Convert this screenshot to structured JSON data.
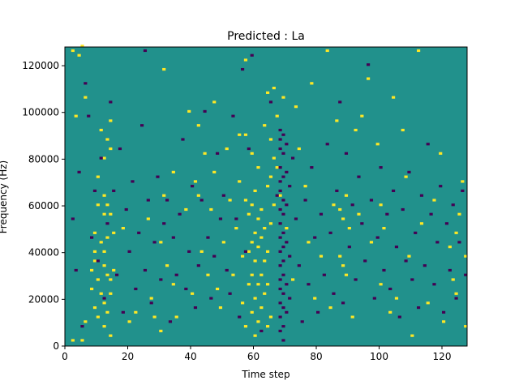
{
  "chart_data": {
    "type": "heatmap",
    "title": "Predicted : La",
    "xlabel": "Time step",
    "ylabel": "Frequency (Hz)",
    "xlim": [
      0,
      128
    ],
    "ylim": [
      0,
      128000
    ],
    "x_ticks": [
      0,
      20,
      40,
      60,
      80,
      100,
      120
    ],
    "x_tick_labels": [
      "0",
      "20",
      "40",
      "60",
      "80",
      "100",
      "120"
    ],
    "y_ticks": [
      0,
      20000,
      40000,
      60000,
      80000,
      100000,
      120000
    ],
    "y_tick_labels": [
      "0",
      "20000",
      "40000",
      "60000",
      "80000",
      "100000",
      "120000"
    ],
    "grid": false,
    "n_time_steps": 128,
    "n_frequency_bins": 128,
    "colormap": "viridis",
    "colors": {
      "background": "#21918c",
      "high": "#fde725",
      "low": "#440154"
    },
    "background_level": 0,
    "cells": {
      "high": [
        [
          2,
          126000
        ],
        [
          2,
          2000
        ],
        [
          3,
          98000
        ],
        [
          4,
          124000
        ],
        [
          5,
          128000
        ],
        [
          5,
          2000
        ],
        [
          6,
          106000
        ],
        [
          6,
          10000
        ],
        [
          8,
          32000
        ],
        [
          8,
          24000
        ],
        [
          9,
          48000
        ],
        [
          9,
          40000
        ],
        [
          9,
          36000
        ],
        [
          9,
          16000
        ],
        [
          10,
          72000
        ],
        [
          10,
          60000
        ],
        [
          10,
          28000
        ],
        [
          10,
          12000
        ],
        [
          11,
          92000
        ],
        [
          11,
          44000
        ],
        [
          11,
          22000
        ],
        [
          12,
          80000
        ],
        [
          12,
          64000
        ],
        [
          12,
          56000
        ],
        [
          12,
          40000
        ],
        [
          12,
          34000
        ],
        [
          12,
          18000
        ],
        [
          12,
          8000
        ],
        [
          13,
          88000
        ],
        [
          13,
          60000
        ],
        [
          13,
          46000
        ],
        [
          13,
          30000
        ],
        [
          13,
          14000
        ],
        [
          14,
          96000
        ],
        [
          14,
          84000
        ],
        [
          14,
          56000
        ],
        [
          14,
          28000
        ],
        [
          14,
          22000
        ],
        [
          14,
          4000
        ],
        [
          15,
          48000
        ],
        [
          15,
          32000
        ],
        [
          18,
          50000
        ],
        [
          20,
          10000
        ],
        [
          22,
          14000
        ],
        [
          26,
          54000
        ],
        [
          27,
          20000
        ],
        [
          28,
          12000
        ],
        [
          30,
          44000
        ],
        [
          30,
          6000
        ],
        [
          31,
          118000
        ],
        [
          31,
          64000
        ],
        [
          32,
          34000
        ],
        [
          34,
          74000
        ],
        [
          34,
          26000
        ],
        [
          35,
          12000
        ],
        [
          38,
          58000
        ],
        [
          39,
          100000
        ],
        [
          40,
          22000
        ],
        [
          41,
          70000
        ],
        [
          42,
          94000
        ],
        [
          42,
          64000
        ],
        [
          43,
          40000
        ],
        [
          44,
          82000
        ],
        [
          45,
          30000
        ],
        [
          46,
          58000
        ],
        [
          47,
          104000
        ],
        [
          47,
          74000
        ],
        [
          48,
          24000
        ],
        [
          49,
          16000
        ],
        [
          50,
          44000
        ],
        [
          51,
          84000
        ],
        [
          52,
          62000
        ],
        [
          53,
          30000
        ],
        [
          54,
          50000
        ],
        [
          55,
          90000
        ],
        [
          55,
          70000
        ],
        [
          56,
          38000
        ],
        [
          56,
          18000
        ],
        [
          57,
          122000
        ],
        [
          57,
          90000
        ],
        [
          57,
          62000
        ],
        [
          57,
          8000
        ],
        [
          58,
          56000
        ],
        [
          58,
          40000
        ],
        [
          58,
          26000
        ],
        [
          59,
          82000
        ],
        [
          59,
          60000
        ],
        [
          59,
          44000
        ],
        [
          59,
          30000
        ],
        [
          59,
          14000
        ],
        [
          60,
          66000
        ],
        [
          60,
          48000
        ],
        [
          60,
          36000
        ],
        [
          60,
          20000
        ],
        [
          60,
          4000
        ],
        [
          61,
          76000
        ],
        [
          61,
          54000
        ],
        [
          61,
          42000
        ],
        [
          61,
          26000
        ],
        [
          61,
          10000
        ],
        [
          62,
          58000
        ],
        [
          62,
          46000
        ],
        [
          62,
          30000
        ],
        [
          62,
          16000
        ],
        [
          63,
          94000
        ],
        [
          63,
          50000
        ],
        [
          63,
          36000
        ],
        [
          63,
          22000
        ],
        [
          64,
          108000
        ],
        [
          64,
          68000
        ],
        [
          64,
          40000
        ],
        [
          64,
          26000
        ],
        [
          64,
          8000
        ],
        [
          65,
          88000
        ],
        [
          65,
          72000
        ],
        [
          65,
          52000
        ],
        [
          65,
          12000
        ],
        [
          66,
          110000
        ],
        [
          66,
          80000
        ],
        [
          66,
          60000
        ],
        [
          67,
          98000
        ],
        [
          67,
          76000
        ],
        [
          68,
          64000
        ],
        [
          69,
          106000
        ],
        [
          70,
          50000
        ],
        [
          72,
          28000
        ],
        [
          73,
          102000
        ],
        [
          74,
          84000
        ],
        [
          76,
          68000
        ],
        [
          77,
          44000
        ],
        [
          78,
          112000
        ],
        [
          79,
          20000
        ],
        [
          81,
          38000
        ],
        [
          83,
          126000
        ],
        [
          84,
          16000
        ],
        [
          85,
          60000
        ],
        [
          86,
          96000
        ],
        [
          87,
          58000
        ],
        [
          87,
          38000
        ],
        [
          88,
          54000
        ],
        [
          88,
          34000
        ],
        [
          89,
          64000
        ],
        [
          89,
          30000
        ],
        [
          90,
          50000
        ],
        [
          91,
          12000
        ],
        [
          92,
          92000
        ],
        [
          93,
          56000
        ],
        [
          94,
          98000
        ],
        [
          96,
          114000
        ],
        [
          97,
          44000
        ],
        [
          99,
          86000
        ],
        [
          100,
          60000
        ],
        [
          100,
          26000
        ],
        [
          101,
          50000
        ],
        [
          103,
          14000
        ],
        [
          104,
          106000
        ],
        [
          105,
          20000
        ],
        [
          107,
          92000
        ],
        [
          108,
          72000
        ],
        [
          109,
          38000
        ],
        [
          110,
          4000
        ],
        [
          112,
          126000
        ],
        [
          113,
          52000
        ],
        [
          115,
          18000
        ],
        [
          117,
          62000
        ],
        [
          119,
          82000
        ],
        [
          120,
          10000
        ],
        [
          122,
          42000
        ],
        [
          123,
          28000
        ],
        [
          124,
          48000
        ],
        [
          124,
          22000
        ],
        [
          125,
          56000
        ],
        [
          126,
          70000
        ],
        [
          127,
          38000
        ],
        [
          127,
          8000
        ]
      ],
      "low": [
        [
          2,
          54000
        ],
        [
          3,
          32000
        ],
        [
          4,
          74000
        ],
        [
          5,
          8000
        ],
        [
          6,
          112000
        ],
        [
          7,
          98000
        ],
        [
          8,
          46000
        ],
        [
          9,
          66000
        ],
        [
          10,
          36000
        ],
        [
          11,
          80000
        ],
        [
          12,
          20000
        ],
        [
          13,
          52000
        ],
        [
          14,
          104000
        ],
        [
          15,
          66000
        ],
        [
          16,
          30000
        ],
        [
          17,
          84000
        ],
        [
          18,
          14000
        ],
        [
          19,
          58000
        ],
        [
          20,
          40000
        ],
        [
          21,
          70000
        ],
        [
          22,
          24000
        ],
        [
          23,
          48000
        ],
        [
          24,
          94000
        ],
        [
          25,
          126000
        ],
        [
          25,
          32000
        ],
        [
          26,
          62000
        ],
        [
          27,
          18000
        ],
        [
          28,
          44000
        ],
        [
          29,
          72000
        ],
        [
          30,
          28000
        ],
        [
          31,
          52000
        ],
        [
          32,
          62000
        ],
        [
          33,
          10000
        ],
        [
          34,
          46000
        ],
        [
          35,
          30000
        ],
        [
          36,
          56000
        ],
        [
          37,
          88000
        ],
        [
          38,
          24000
        ],
        [
          39,
          40000
        ],
        [
          40,
          68000
        ],
        [
          41,
          16000
        ],
        [
          42,
          34000
        ],
        [
          43,
          62000
        ],
        [
          44,
          100000
        ],
        [
          45,
          46000
        ],
        [
          46,
          20000
        ],
        [
          47,
          38000
        ],
        [
          48,
          82000
        ],
        [
          49,
          54000
        ],
        [
          50,
          64000
        ],
        [
          51,
          32000
        ],
        [
          52,
          22000
        ],
        [
          53,
          98000
        ],
        [
          54,
          54000
        ],
        [
          55,
          12000
        ],
        [
          56,
          118000
        ],
        [
          57,
          40000
        ],
        [
          58,
          84000
        ],
        [
          59,
          124000
        ],
        [
          62,
          6000
        ],
        [
          65,
          104000
        ],
        [
          67,
          64000
        ],
        [
          68,
          92000
        ],
        [
          68,
          88000
        ],
        [
          68,
          84000
        ],
        [
          68,
          76000
        ],
        [
          68,
          70000
        ],
        [
          68,
          66000
        ],
        [
          68,
          58000
        ],
        [
          68,
          52000
        ],
        [
          68,
          46000
        ],
        [
          68,
          40000
        ],
        [
          68,
          34000
        ],
        [
          68,
          28000
        ],
        [
          68,
          24000
        ],
        [
          68,
          18000
        ],
        [
          68,
          12000
        ],
        [
          68,
          6000
        ],
        [
          69,
          90000
        ],
        [
          69,
          82000
        ],
        [
          69,
          72000
        ],
        [
          69,
          62000
        ],
        [
          69,
          56000
        ],
        [
          69,
          48000
        ],
        [
          69,
          42000
        ],
        [
          69,
          36000
        ],
        [
          69,
          30000
        ],
        [
          69,
          22000
        ],
        [
          69,
          16000
        ],
        [
          69,
          8000
        ],
        [
          69,
          2000
        ],
        [
          70,
          86000
        ],
        [
          70,
          74000
        ],
        [
          70,
          60000
        ],
        [
          70,
          44000
        ],
        [
          70,
          26000
        ],
        [
          70,
          14000
        ],
        [
          71,
          68000
        ],
        [
          71,
          38000
        ],
        [
          71,
          20000
        ],
        [
          72,
          80000
        ],
        [
          73,
          54000
        ],
        [
          74,
          34000
        ],
        [
          75,
          10000
        ],
        [
          76,
          62000
        ],
        [
          77,
          26000
        ],
        [
          78,
          76000
        ],
        [
          79,
          46000
        ],
        [
          80,
          14000
        ],
        [
          81,
          56000
        ],
        [
          82,
          30000
        ],
        [
          83,
          86000
        ],
        [
          84,
          48000
        ],
        [
          85,
          22000
        ],
        [
          86,
          66000
        ],
        [
          87,
          104000
        ],
        [
          88,
          18000
        ],
        [
          89,
          82000
        ],
        [
          90,
          42000
        ],
        [
          91,
          60000
        ],
        [
          92,
          28000
        ],
        [
          93,
          72000
        ],
        [
          94,
          52000
        ],
        [
          95,
          36000
        ],
        [
          96,
          120000
        ],
        [
          97,
          62000
        ],
        [
          98,
          20000
        ],
        [
          99,
          46000
        ],
        [
          100,
          76000
        ],
        [
          101,
          32000
        ],
        [
          102,
          56000
        ],
        [
          103,
          24000
        ],
        [
          104,
          66000
        ],
        [
          105,
          42000
        ],
        [
          106,
          12000
        ],
        [
          107,
          58000
        ],
        [
          108,
          36000
        ],
        [
          109,
          74000
        ],
        [
          110,
          28000
        ],
        [
          111,
          48000
        ],
        [
          112,
          16000
        ],
        [
          113,
          64000
        ],
        [
          114,
          34000
        ],
        [
          115,
          86000
        ],
        [
          116,
          56000
        ],
        [
          117,
          26000
        ],
        [
          118,
          44000
        ],
        [
          119,
          68000
        ],
        [
          120,
          14000
        ],
        [
          121,
          52000
        ],
        [
          122,
          32000
        ],
        [
          123,
          60000
        ],
        [
          124,
          20000
        ],
        [
          125,
          44000
        ],
        [
          126,
          66000
        ],
        [
          127,
          30000
        ]
      ]
    }
  }
}
